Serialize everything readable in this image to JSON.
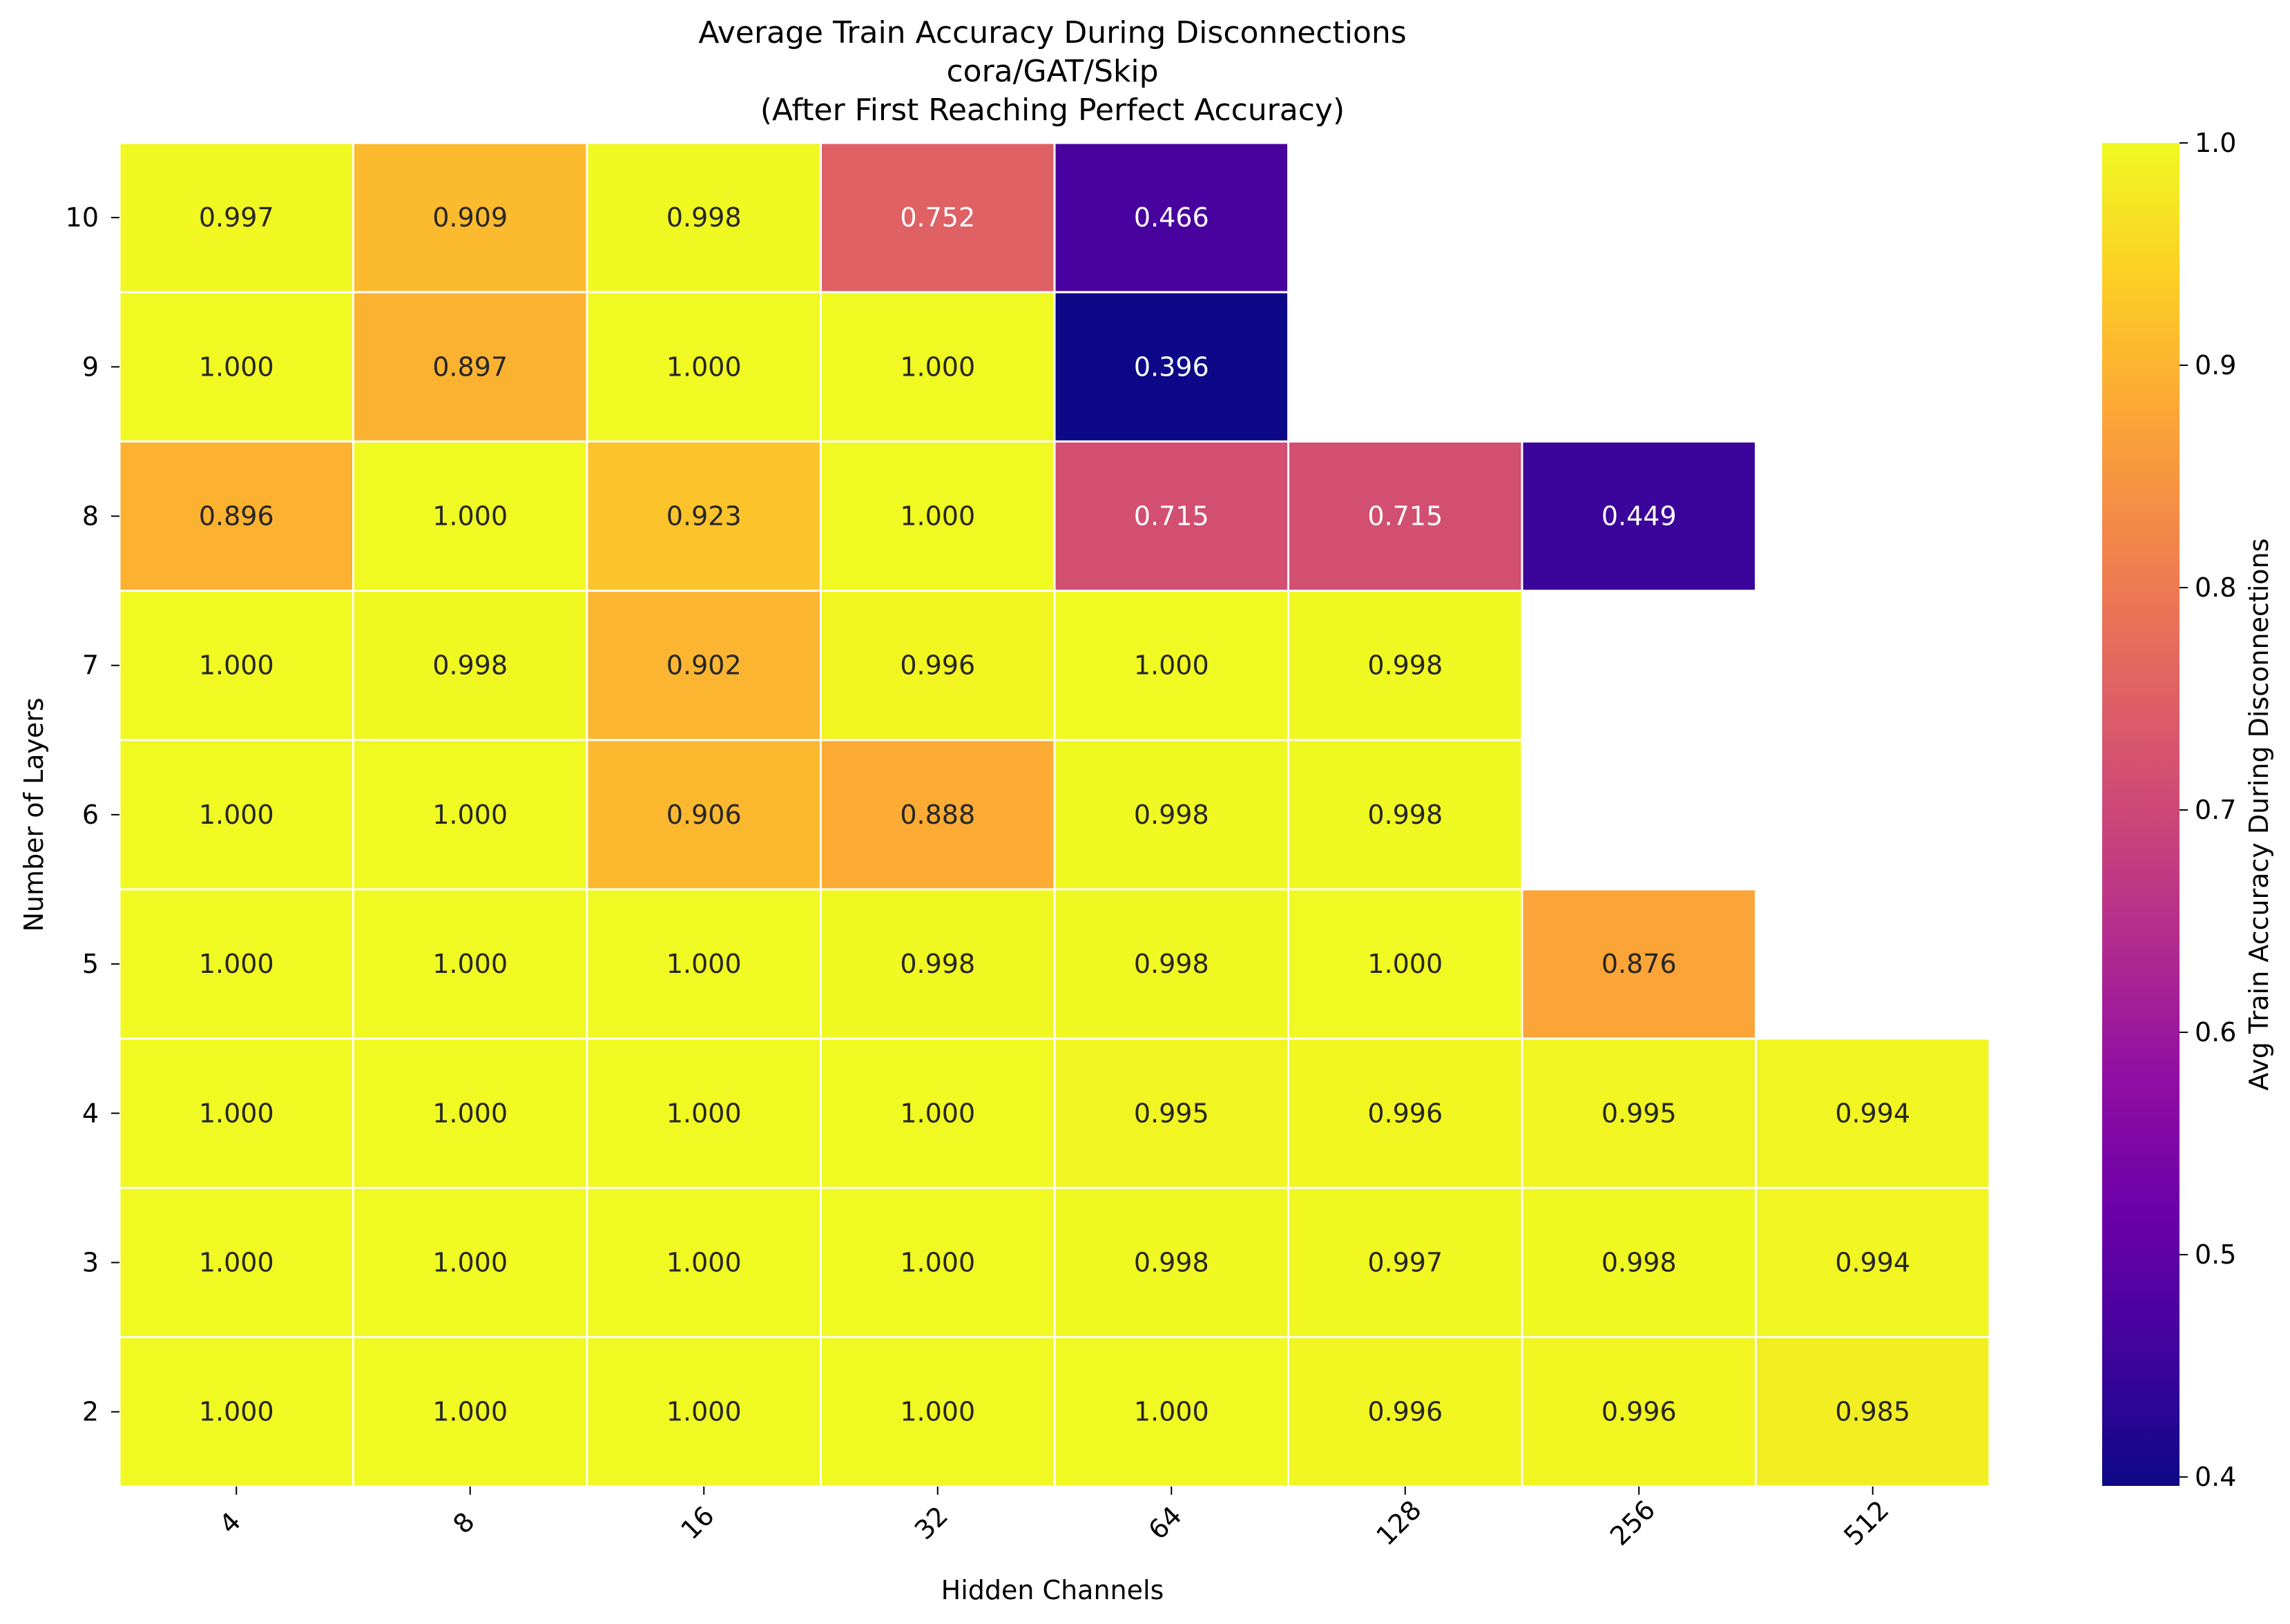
{
  "chart_data": {
    "type": "heatmap",
    "title": [
      "Average Train Accuracy During Disconnections",
      "cora/GAT/Skip",
      "(After First Reaching Perfect Accuracy)"
    ],
    "xlabel": "Hidden Channels",
    "ylabel": "Number of Layers",
    "x_categories": [
      "4",
      "8",
      "16",
      "32",
      "64",
      "128",
      "256",
      "512"
    ],
    "y_categories": [
      "10",
      "9",
      "8",
      "7",
      "6",
      "5",
      "4",
      "3",
      "2"
    ],
    "values": [
      [
        0.997,
        0.909,
        0.998,
        0.752,
        0.466,
        null,
        null,
        null
      ],
      [
        1.0,
        0.897,
        1.0,
        1.0,
        0.396,
        null,
        null,
        null
      ],
      [
        0.896,
        1.0,
        0.923,
        1.0,
        0.715,
        0.715,
        0.449,
        null
      ],
      [
        1.0,
        0.998,
        0.902,
        0.996,
        1.0,
        0.998,
        null,
        null
      ],
      [
        1.0,
        1.0,
        0.906,
        0.888,
        0.998,
        0.998,
        null,
        null
      ],
      [
        1.0,
        1.0,
        1.0,
        0.998,
        0.998,
        1.0,
        0.876,
        null
      ],
      [
        1.0,
        1.0,
        1.0,
        1.0,
        0.995,
        0.996,
        0.995,
        0.994
      ],
      [
        1.0,
        1.0,
        1.0,
        1.0,
        0.998,
        0.997,
        0.998,
        0.994
      ],
      [
        1.0,
        1.0,
        1.0,
        1.0,
        1.0,
        0.996,
        0.996,
        0.985
      ]
    ],
    "colormap": "plasma",
    "colorbar": {
      "label": "Avg Train Accuracy During Disconnections",
      "range": [
        0.396,
        1.0
      ],
      "ticks": [
        "0.4",
        "0.5",
        "0.6",
        "0.7",
        "0.8",
        "0.9",
        "1.0"
      ]
    }
  }
}
